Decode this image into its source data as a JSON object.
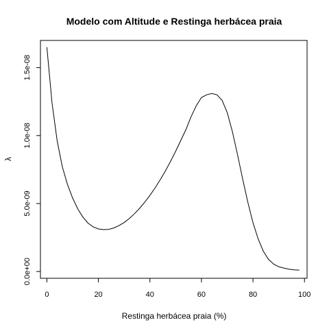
{
  "chart_data": {
    "type": "line",
    "title": "Modelo com Altitude e Restinga herbácea praia",
    "xlabel": "Restinga herbácea praia (%)",
    "ylabel": "λ",
    "xlim": [
      -2.5,
      101
    ],
    "ylim": [
      -5e-10,
      1.7e-08
    ],
    "x_ticks": [
      0,
      20,
      40,
      60,
      80,
      100
    ],
    "x_tick_labels": [
      "0",
      "20",
      "40",
      "60",
      "80",
      "100"
    ],
    "y_ticks": [
      0,
      5e-09,
      1e-08,
      1.5e-08
    ],
    "y_tick_labels": [
      "0.0e+00",
      "5.0e-09",
      "1.0e-08",
      "1.5e-08"
    ],
    "grid": false,
    "line_color": "#000000",
    "series": [
      {
        "x": [
          0,
          2,
          4,
          6,
          8,
          10,
          12,
          14,
          16,
          18,
          20,
          22,
          24,
          26,
          28,
          30,
          32,
          34,
          36,
          38,
          40,
          42,
          44,
          46,
          48,
          50,
          52,
          54,
          56,
          58,
          60,
          62,
          64,
          66,
          68,
          70,
          72,
          74,
          76,
          78,
          80,
          82,
          84,
          86,
          88,
          90,
          92,
          94,
          96,
          98
        ],
        "y": [
          1.65e-08,
          1.24e-08,
          9.6e-09,
          7.7e-09,
          6.4e-09,
          5.4e-09,
          4.6e-09,
          4e-09,
          3.55e-09,
          3.28e-09,
          3.13e-09,
          3.08e-09,
          3.1e-09,
          3.2e-09,
          3.38e-09,
          3.6e-09,
          3.9e-09,
          4.25e-09,
          4.65e-09,
          5.1e-09,
          5.6e-09,
          6.15e-09,
          6.75e-09,
          7.4e-09,
          8.1e-09,
          8.85e-09,
          9.65e-09,
          1.045e-08,
          1.14e-08,
          1.22e-08,
          1.28e-08,
          1.3e-08,
          1.31e-08,
          1.3e-08,
          1.26e-08,
          1.17e-08,
          1.03e-08,
          8.6e-09,
          6.8e-09,
          5.1e-09,
          3.6e-09,
          2.4e-09,
          1.5e-09,
          9e-10,
          5.5e-10,
          3.5e-10,
          2.5e-10,
          1.7e-10,
          1.2e-10,
          1e-10
        ]
      }
    ]
  }
}
